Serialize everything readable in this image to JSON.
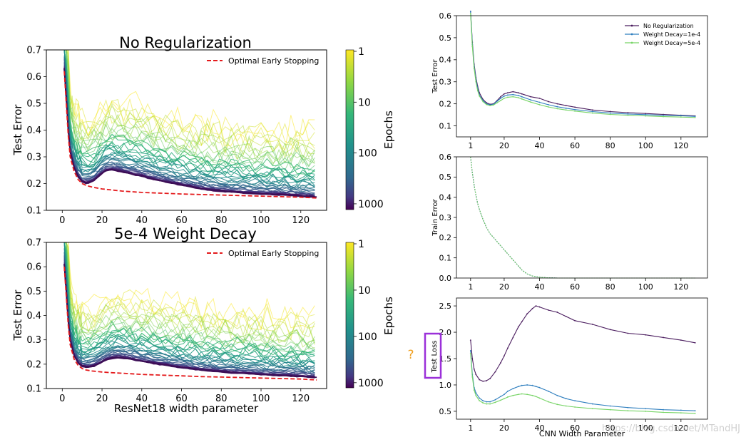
{
  "annotation": {
    "question_mark": "?",
    "watermark": "https://blog.csdn.net/MTandHJ"
  },
  "colors": {
    "early_stop": "#e41a1c",
    "no_reg": "#4b1d5f",
    "wd_1e4": "#2f7fbf",
    "wd_5e4": "#77d466",
    "highlight_box": "#9b30d9",
    "question_mark": "#f0a020"
  },
  "chart_data": [
    {
      "type": "line",
      "title": "No Regularization",
      "xlabel": "",
      "ylabel": "Test Error",
      "xlim": [
        -8,
        133
      ],
      "ylim": [
        0.1,
        0.7
      ],
      "xticks": [
        0,
        20,
        40,
        60,
        80,
        100,
        120
      ],
      "yticks": [
        0.1,
        0.2,
        0.3,
        0.4,
        0.5,
        0.6,
        0.7
      ],
      "legend": {
        "position": "top-right",
        "entries": [
          "Optimal Early Stopping"
        ]
      },
      "colorbar": {
        "label": "Epochs",
        "ticks": [
          "1",
          "10",
          "100",
          "1000"
        ],
        "scale": "log"
      },
      "early_stopping": {
        "name": "Optimal Early Stopping",
        "x": [
          1,
          2,
          3,
          4,
          6,
          8,
          10,
          12,
          15,
          20,
          25,
          30,
          40,
          50,
          60,
          70,
          80,
          90,
          100,
          110,
          120,
          128
        ],
        "y": [
          0.62,
          0.5,
          0.38,
          0.3,
          0.245,
          0.215,
          0.2,
          0.193,
          0.187,
          0.18,
          0.176,
          0.172,
          0.167,
          0.164,
          0.161,
          0.159,
          0.157,
          0.155,
          0.153,
          0.151,
          0.149,
          0.146
        ]
      },
      "final_epoch_curve": {
        "x": [
          1,
          2,
          3,
          4,
          6,
          8,
          10,
          12,
          15,
          18,
          20,
          22,
          25,
          28,
          30,
          35,
          40,
          45,
          50,
          55,
          60,
          65,
          70,
          80,
          90,
          100,
          110,
          120,
          128
        ],
        "y": [
          0.63,
          0.52,
          0.4,
          0.32,
          0.26,
          0.225,
          0.207,
          0.2,
          0.208,
          0.225,
          0.24,
          0.248,
          0.252,
          0.248,
          0.245,
          0.236,
          0.228,
          0.218,
          0.21,
          0.202,
          0.195,
          0.188,
          0.18,
          0.172,
          0.166,
          0.162,
          0.158,
          0.154,
          0.15
        ]
      }
    },
    {
      "type": "line",
      "title": "5e-4 Weight Decay",
      "xlabel": "ResNet18 width parameter",
      "ylabel": "Test Error",
      "xlim": [
        -8,
        133
      ],
      "ylim": [
        0.1,
        0.7
      ],
      "xticks": [
        0,
        20,
        40,
        60,
        80,
        100,
        120
      ],
      "yticks": [
        0.1,
        0.2,
        0.3,
        0.4,
        0.5,
        0.6,
        0.7
      ],
      "legend": {
        "position": "top-right",
        "entries": [
          "Optimal Early Stopping"
        ]
      },
      "colorbar": {
        "label": "Epochs",
        "ticks": [
          "1",
          "10",
          "100",
          "1000"
        ],
        "scale": "log"
      },
      "early_stopping": {
        "name": "Optimal Early Stopping",
        "x": [
          1,
          2,
          3,
          4,
          6,
          8,
          10,
          12,
          15,
          20,
          25,
          30,
          40,
          50,
          60,
          70,
          80,
          90,
          100,
          110,
          120,
          128
        ],
        "y": [
          0.6,
          0.48,
          0.36,
          0.28,
          0.22,
          0.195,
          0.182,
          0.176,
          0.172,
          0.168,
          0.165,
          0.163,
          0.158,
          0.155,
          0.152,
          0.149,
          0.147,
          0.145,
          0.143,
          0.141,
          0.139,
          0.135
        ]
      },
      "final_epoch_curve": {
        "x": [
          1,
          2,
          3,
          4,
          6,
          8,
          10,
          12,
          15,
          18,
          20,
          22,
          25,
          28,
          30,
          35,
          40,
          45,
          50,
          55,
          60,
          65,
          70,
          80,
          90,
          100,
          110,
          120,
          128
        ],
        "y": [
          0.61,
          0.5,
          0.38,
          0.3,
          0.235,
          0.205,
          0.192,
          0.187,
          0.19,
          0.2,
          0.21,
          0.218,
          0.225,
          0.228,
          0.226,
          0.22,
          0.212,
          0.205,
          0.198,
          0.192,
          0.186,
          0.181,
          0.176,
          0.169,
          0.163,
          0.158,
          0.154,
          0.15,
          0.146
        ]
      }
    },
    {
      "type": "line",
      "title": "",
      "xlabel": "",
      "ylabel": "Test Error",
      "xlim": [
        -7,
        135
      ],
      "ylim": [
        0.05,
        0.6
      ],
      "xticks": [
        1,
        20,
        40,
        60,
        80,
        100,
        120
      ],
      "yticks": [
        0.1,
        0.2,
        0.3,
        0.4,
        0.5,
        0.6
      ],
      "legend": {
        "position": "top-right"
      },
      "x": [
        1,
        2,
        3,
        4,
        5,
        6,
        8,
        10,
        12,
        14,
        16,
        18,
        20,
        22,
        25,
        28,
        30,
        35,
        40,
        45,
        50,
        55,
        60,
        70,
        80,
        90,
        100,
        110,
        120,
        128
      ],
      "series": [
        {
          "name": "No Regularization",
          "values": [
            0.62,
            0.48,
            0.38,
            0.32,
            0.28,
            0.25,
            0.22,
            0.205,
            0.198,
            0.2,
            0.215,
            0.232,
            0.245,
            0.25,
            0.255,
            0.25,
            0.245,
            0.232,
            0.225,
            0.21,
            0.2,
            0.192,
            0.185,
            0.172,
            0.165,
            0.16,
            0.156,
            0.152,
            0.148,
            0.145
          ]
        },
        {
          "name": "Weight Decay=1e-4",
          "values": [
            0.62,
            0.47,
            0.37,
            0.31,
            0.27,
            0.24,
            0.215,
            0.2,
            0.195,
            0.198,
            0.212,
            0.225,
            0.235,
            0.24,
            0.242,
            0.238,
            0.232,
            0.218,
            0.207,
            0.196,
            0.187,
            0.18,
            0.174,
            0.165,
            0.158,
            0.154,
            0.151,
            0.148,
            0.146,
            0.143
          ]
        },
        {
          "name": "Weight Decay=5e-4",
          "values": [
            0.61,
            0.46,
            0.36,
            0.3,
            0.26,
            0.235,
            0.21,
            0.197,
            0.192,
            0.195,
            0.205,
            0.215,
            0.225,
            0.23,
            0.232,
            0.228,
            0.222,
            0.208,
            0.196,
            0.186,
            0.178,
            0.172,
            0.167,
            0.158,
            0.152,
            0.148,
            0.145,
            0.142,
            0.14,
            0.138
          ]
        }
      ]
    },
    {
      "type": "line",
      "title": "",
      "xlabel": "",
      "ylabel": "Train Error",
      "xlim": [
        -7,
        135
      ],
      "ylim": [
        0.0,
        0.6
      ],
      "xticks": [
        1,
        20,
        40,
        60,
        80,
        100,
        120
      ],
      "yticks": [
        0.0,
        0.1,
        0.2,
        0.3,
        0.4,
        0.5,
        0.6
      ],
      "x": [
        1,
        2,
        3,
        4,
        5,
        6,
        8,
        10,
        12,
        14,
        16,
        18,
        20,
        22,
        25,
        28,
        30,
        33,
        36,
        40,
        45,
        50,
        60,
        80,
        100,
        128
      ],
      "series": [
        {
          "values": [
            0.6,
            0.52,
            0.46,
            0.41,
            0.37,
            0.34,
            0.29,
            0.25,
            0.22,
            0.2,
            0.18,
            0.16,
            0.14,
            0.12,
            0.09,
            0.06,
            0.04,
            0.02,
            0.01,
            0.004,
            0.001,
            0.0,
            0.0,
            0.0,
            0.0,
            0.0
          ]
        },
        {
          "values": [
            0.6,
            0.52,
            0.46,
            0.41,
            0.37,
            0.34,
            0.29,
            0.25,
            0.22,
            0.2,
            0.18,
            0.16,
            0.14,
            0.12,
            0.09,
            0.06,
            0.04,
            0.02,
            0.01,
            0.004,
            0.001,
            0.0,
            0.0,
            0.0,
            0.0,
            0.0
          ]
        },
        {
          "values": [
            0.6,
            0.52,
            0.46,
            0.41,
            0.37,
            0.34,
            0.29,
            0.25,
            0.22,
            0.2,
            0.18,
            0.16,
            0.14,
            0.12,
            0.09,
            0.06,
            0.04,
            0.02,
            0.01,
            0.004,
            0.001,
            0.0,
            0.0,
            0.0,
            0.0,
            0.0
          ]
        }
      ]
    },
    {
      "type": "line",
      "title": "",
      "xlabel": "CNN Width Parameter",
      "ylabel": "Test Loss",
      "xlim": [
        -7,
        135
      ],
      "ylim": [
        0.35,
        2.65
      ],
      "xticks": [
        1,
        20,
        40,
        60,
        80,
        100,
        120
      ],
      "yticks": [
        0.5,
        1.0,
        1.5,
        2.0,
        2.5
      ],
      "x": [
        1,
        2,
        3,
        4,
        6,
        8,
        10,
        12,
        15,
        18,
        20,
        22,
        25,
        28,
        30,
        33,
        36,
        38,
        40,
        45,
        50,
        55,
        60,
        70,
        80,
        90,
        100,
        110,
        120,
        128
      ],
      "series": [
        {
          "name": "No Regularization",
          "values": [
            1.85,
            1.5,
            1.3,
            1.2,
            1.1,
            1.07,
            1.08,
            1.12,
            1.25,
            1.42,
            1.55,
            1.7,
            1.9,
            2.1,
            2.2,
            2.35,
            2.45,
            2.5,
            2.48,
            2.42,
            2.38,
            2.3,
            2.22,
            2.15,
            2.05,
            1.98,
            1.95,
            1.9,
            1.85,
            1.8
          ]
        },
        {
          "name": "Weight Decay=1e-4",
          "values": [
            1.65,
            1.2,
            0.95,
            0.85,
            0.75,
            0.7,
            0.68,
            0.68,
            0.72,
            0.78,
            0.82,
            0.88,
            0.93,
            0.97,
            0.99,
            1.0,
            0.99,
            0.97,
            0.95,
            0.88,
            0.8,
            0.74,
            0.7,
            0.64,
            0.6,
            0.57,
            0.55,
            0.53,
            0.52,
            0.51
          ]
        },
        {
          "name": "Weight Decay=5e-4",
          "values": [
            1.6,
            1.15,
            0.9,
            0.8,
            0.7,
            0.66,
            0.64,
            0.64,
            0.67,
            0.71,
            0.74,
            0.77,
            0.8,
            0.82,
            0.83,
            0.82,
            0.8,
            0.78,
            0.75,
            0.68,
            0.63,
            0.6,
            0.58,
            0.55,
            0.53,
            0.51,
            0.5,
            0.48,
            0.47,
            0.46
          ]
        }
      ]
    }
  ]
}
